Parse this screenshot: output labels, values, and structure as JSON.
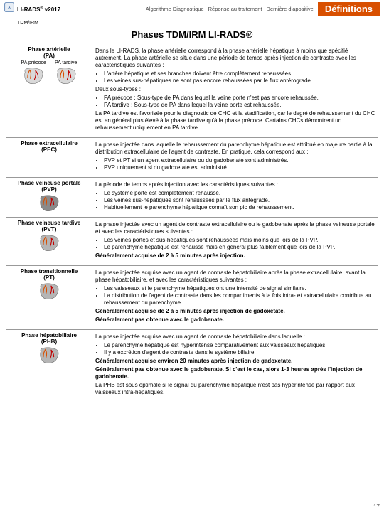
{
  "header": {
    "brand": "LI-RADS",
    "brand_sup": "®",
    "version": " v2017",
    "sub": "TDM/IRM",
    "tabs": [
      "Algorithme Diagnostique",
      "Réponse au traitement",
      "Dernière diapositive"
    ],
    "active_tab": "Définitions"
  },
  "title": "Phases TDM/IRM LI-RADS®",
  "colors": {
    "accent": "#d84f00",
    "liver_light": "#d9d9d9",
    "liver_dark": "#8a8a8a",
    "vessel": "#d84f00",
    "artery": "#c00000"
  },
  "page_number": "17",
  "rows": [
    {
      "id": "pa",
      "label": "Phase artérielle\n(PA)",
      "dual": true,
      "dual_labels": [
        "PA précoce",
        "PA tardive"
      ],
      "body": {
        "intro": "Dans le LI-RADS, la phase artérielle correspond à la phase artérielle hépatique à moins que spécifié autrement. La phase artérielle se situe dans une période de temps après injection de contraste avec les caractéristiques suivantes :",
        "bullets": [
          "L'artère hépatique et ses branches doivent être complètement rehaussées.",
          "Les veines sus-hépatiques ne sont pas encore rehaussées par le flux antérograde."
        ],
        "sub_intro": "Deux sous-types :",
        "sub_bullets": [
          "PA précoce : Sous-type de PA dans lequel la veine porte n'est pas encore rehaussée.",
          "PA tardive : Sous-type de PA dans lequel la veine porte est rehaussée."
        ],
        "para": "La PA tardive est favorisée pour le diagnostic de CHC et la stadification, car le degré de rehaussement du CHC est en général plus élevé à la phase tardive qu'à la phase précoce. Certains CHCs démontrent un rehaussement uniquement en PA tardive."
      }
    },
    {
      "id": "pec",
      "label": "Phase extracellulaire\n(PEC)",
      "no_icon": true,
      "body": {
        "intro": "La phase injectée dans laquelle le rehaussement du parenchyme hépatique est attribué en majeure partie à la distribution extracellulaire de l'agent de contraste. En pratique, cela correspond aux :",
        "bullets": [
          "PVP et PT si un agent extracellulaire ou du gadobenate sont administrés.",
          "PVP uniquement si du gadoxetate est administré."
        ]
      }
    },
    {
      "id": "pvp",
      "label": "Phase veineuse portale\n(PVP)",
      "body": {
        "intro": "La période de temps après injection avec les caractéristiques suivantes :",
        "bullets": [
          "Le système porte est complètement rehaussé.",
          "Les veines sus-hépatiques sont rehaussées par le flux antégrade.",
          "Habituellement le parenchyme hépatique connaît son pic de rehaussement."
        ]
      }
    },
    {
      "id": "pvt",
      "label": "Phase veineuse tardive\n(PVT)",
      "body": {
        "intro": "La phase injectée avec un agent de contraste extracellulaire ou le gadobenate après la phase veineuse portale et avec les caractéristiques suivantes :",
        "bullets": [
          "Les veines portes et sus-hépatiques sont rehaussées mais moins que lors de la PVP.",
          "Le parenchyme hépatique est rehaussé mais en général plus faiblement que lors de la PVP."
        ],
        "extra": [
          "Généralement acquise de 2 à 5 minutes après injection."
        ]
      }
    },
    {
      "id": "pt",
      "label": "Phase transitionnelle\n(PT)",
      "body": {
        "intro": "La phase injectée acquise avec un agent de contraste hépatobiliaire après la phase extracellulaire, avant la phase hépatobiliaire, et avec les caractéristiques suivantes :",
        "bullets": [
          "Les vaisseaux et le parenchyme hépatiques ont une intensité de signal similaire.",
          "La distribution de l'agent de contraste dans les compartiments à la fois intra- et extracellulaire contribue au rehaussement du parenchyme."
        ],
        "extra": [
          "Généralement acquise de 2 à 5 minutes après injection de gadoxetate.",
          "Généralement pas obtenue avec le gadobenate."
        ]
      }
    },
    {
      "id": "phb",
      "label": "Phase hépatobiliaire\n(PHB)",
      "body": {
        "intro": "La phase injectée acquise avec un agent de contraste hépatobiliaire dans laquelle :",
        "bullets": [
          "Le parenchyme hépatique est hyperintense comparativement aux vaisseaux hépatiques.",
          "Il y a excrétion d'agent de contraste dans le système biliaire."
        ],
        "extra": [
          "Généralement acquise environ 20 minutes après injection de gadoxetate.",
          "Généralement pas obtenue avec le gadobenate. Si c'est le cas, alors 1-3 heures après l'injection de gadobenate."
        ],
        "final": "La PHB est sous optimale si le signal du parenchyme hépatique n'est pas hyperintense par rapport aux vaisseaux intra-hépatiques."
      }
    }
  ]
}
